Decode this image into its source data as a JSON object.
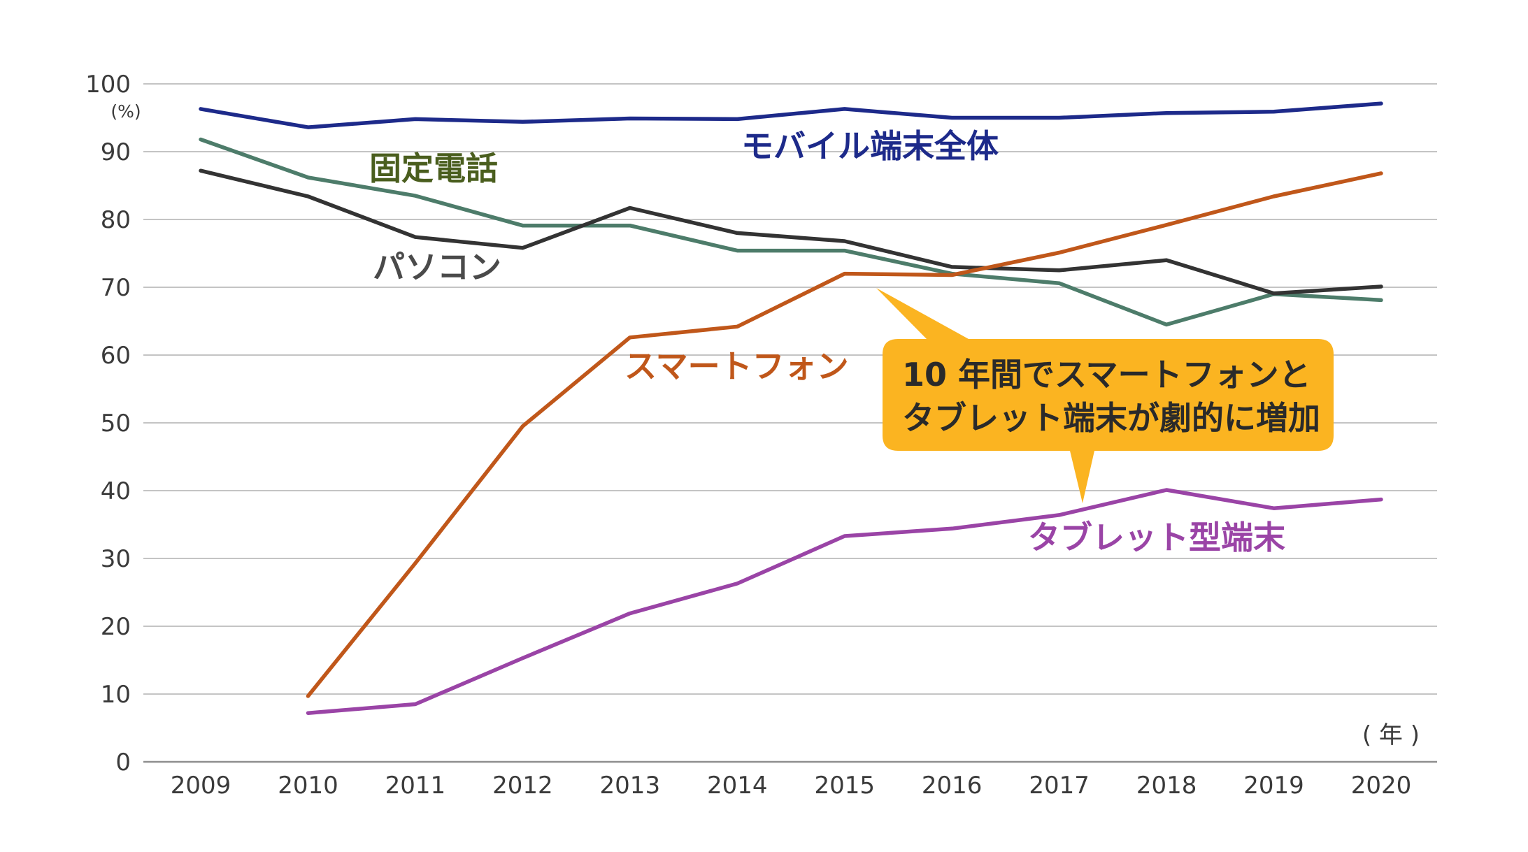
{
  "chart_data": {
    "type": "line",
    "title": "",
    "xlabel": "( 年 )",
    "ylabel": "(%)",
    "ylim": [
      0,
      100
    ],
    "yticks": [
      "0",
      "10",
      "20",
      "30",
      "40",
      "50",
      "60",
      "70",
      "80",
      "90",
      "100"
    ],
    "categories": [
      "2009",
      "2010",
      "2011",
      "2012",
      "2013",
      "2014",
      "2015",
      "2016",
      "2017",
      "2018",
      "2019",
      "2020"
    ],
    "grid": true,
    "series": [
      {
        "name": "モバイル端末全体",
        "color": "#1d2a8a",
        "values": [
          96.3,
          93.6,
          94.8,
          94.4,
          94.9,
          94.8,
          96.3,
          95.0,
          95.0,
          95.7,
          95.9,
          97.1
        ]
      },
      {
        "name": "固定電話",
        "color": "#4d7c6a",
        "values": [
          91.8,
          86.2,
          83.5,
          79.1,
          79.1,
          75.4,
          75.4,
          72.0,
          70.6,
          64.5,
          69.0,
          68.1
        ]
      },
      {
        "name": "パソコン",
        "color": "#333333",
        "values": [
          87.2,
          83.4,
          77.4,
          75.8,
          81.7,
          78.0,
          76.8,
          73.0,
          72.5,
          74.0,
          69.1,
          70.1
        ]
      },
      {
        "name": "スマートフォン",
        "color": "#c0571a",
        "values": [
          null,
          9.7,
          29.3,
          49.5,
          62.6,
          64.2,
          72.0,
          71.8,
          75.1,
          79.2,
          83.4,
          86.8
        ]
      },
      {
        "name": "タブレット型端末",
        "color": "#9a44a6",
        "values": [
          null,
          7.2,
          8.5,
          15.3,
          21.9,
          26.3,
          33.3,
          34.4,
          36.4,
          40.1,
          37.4,
          38.7
        ]
      }
    ],
    "annotation": {
      "lines": [
        "10 年間でスマートフォンと",
        "タブレット端末が劇的に増加"
      ],
      "color": "#fbb421"
    }
  }
}
